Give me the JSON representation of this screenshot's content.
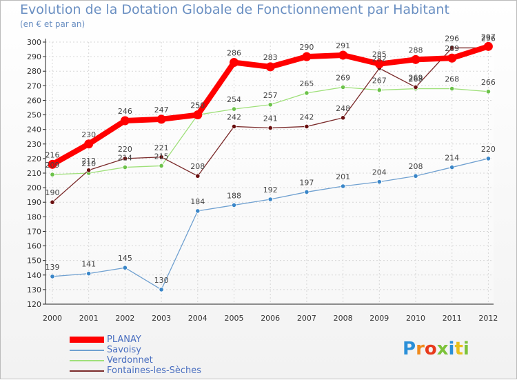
{
  "title": "Evolution de la Dotation Globale de Fonctionnement par Habitant",
  "subtitle": "(en € et par an)",
  "logo_text": "Proxiti",
  "chart_data": {
    "type": "line",
    "title": "Evolution de la Dotation Globale de Fonctionnement par Habitant",
    "ylabel": "(en € et par an)",
    "xlabel": "",
    "ylim": [
      120,
      300
    ],
    "yticks": [
      120,
      130,
      140,
      150,
      160,
      170,
      180,
      190,
      200,
      210,
      220,
      230,
      240,
      250,
      260,
      270,
      280,
      290,
      300
    ],
    "categories": [
      "2000",
      "2001",
      "2002",
      "2003",
      "2004",
      "2005",
      "2006",
      "2007",
      "2008",
      "2009",
      "2010",
      "2011",
      "2012"
    ],
    "series": [
      {
        "name": "PLANAY",
        "color": "#ff0000",
        "marker": "#ff0000",
        "values": [
          216,
          230,
          246,
          247,
          250,
          286,
          283,
          290,
          291,
          285,
          288,
          289,
          297
        ]
      },
      {
        "name": "Savoisy",
        "color": "#6fa0d0",
        "marker": "#3a86c8",
        "values": [
          139,
          141,
          145,
          130,
          184,
          188,
          192,
          197,
          201,
          204,
          208,
          214,
          220
        ]
      },
      {
        "name": "Verdonnet",
        "color": "#9fe07a",
        "marker": "#6cc24a",
        "values": [
          209,
          210,
          214,
          215,
          250,
          254,
          257,
          265,
          269,
          267,
          268,
          268,
          266
        ]
      },
      {
        "name": "Fontaines-les-Sèches",
        "color": "#7a2a2a",
        "marker": "#6a1010",
        "values": [
          190,
          212,
          220,
          221,
          208,
          242,
          241,
          242,
          248,
          282,
          269,
          296,
          296
        ]
      }
    ]
  }
}
